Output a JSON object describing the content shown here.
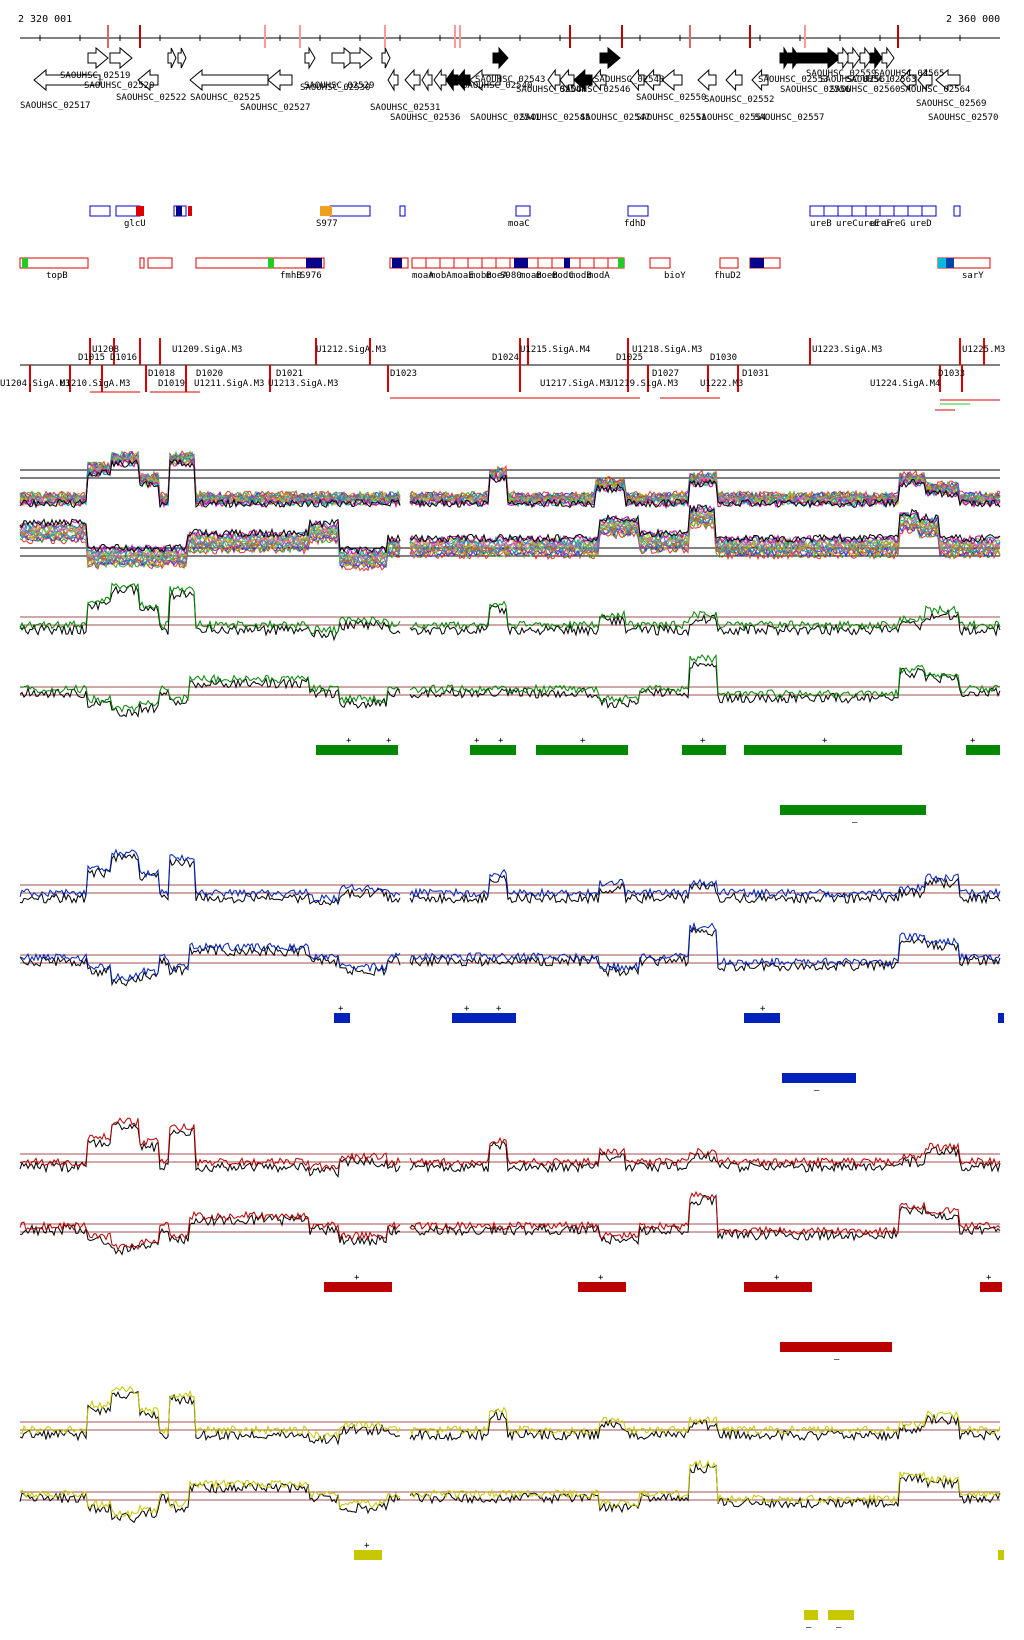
{
  "coordinates": {
    "start_label": "2 320 001",
    "end_label": "2 360 000"
  },
  "genes_top": [
    {
      "label": "SAOUHSC_02519"
    },
    {
      "label": "SAOUHSC_02520"
    },
    {
      "label": "SAOUHSC_02522"
    },
    {
      "label": "SAOUHSC_02525"
    },
    {
      "label": "SAOUHSC_02527"
    },
    {
      "label": "SAOUHSC_02529"
    },
    {
      "label": "SAOUHSC_02530"
    },
    {
      "label": "SAOUHSC_02531"
    },
    {
      "label": "SAOUHSC_02540"
    },
    {
      "label": "SAOUHSC_02543"
    },
    {
      "label": "SAOUHSC_02544"
    },
    {
      "label": "SAOUHSC_02546"
    },
    {
      "label": "SAOUHSC_02548"
    },
    {
      "label": "SAOUHSC_02550"
    },
    {
      "label": "SAOUHSC_02552"
    },
    {
      "label": "SAOUHSC_02553"
    },
    {
      "label": "SAOUHSC_02556"
    },
    {
      "label": "SAOUHSC_02559"
    },
    {
      "label": "SAOUHSC_02560"
    },
    {
      "label": "SAOUHSC_02561"
    },
    {
      "label": "SAOUHSC_02563"
    },
    {
      "label": "SAOUHSC_02564"
    },
    {
      "label": "SAOUHSC_02565"
    },
    {
      "label": "SAOUHSC_02569"
    }
  ],
  "genes_bottom": [
    {
      "label": "SAOUHSC_02517"
    },
    {
      "label": "SAOUHSC_02536"
    },
    {
      "label": "SAOUHSC_02541"
    },
    {
      "label": "SAOUHSC_02545"
    },
    {
      "label": "SAOUHSC_02547"
    },
    {
      "label": "SAOUHSC_02551"
    },
    {
      "label": "SAOUHSC_02554"
    },
    {
      "label": "SAOUHSC_02557"
    },
    {
      "label": "SAOUHSC_02570"
    }
  ],
  "features_plus": [
    "glcU",
    "S977",
    "moaC",
    "fdhD",
    "ureB",
    "ureC",
    "ureE",
    "ureF",
    "ureG",
    "ureD"
  ],
  "features_minus": [
    "topB",
    "fmhB",
    "S976",
    "moaA",
    "mobA",
    "moaE",
    "mobB",
    "moeA",
    "S980",
    "moaB",
    "moeB",
    "modC",
    "modB",
    "modA",
    "bioY",
    "fhuD2",
    "sarY"
  ],
  "tu_upper": [
    "U1208",
    "U1209.SigA.M3",
    "U1212.SigA.M3",
    "U1215.SigA.M4",
    "U1218.SigA.M3",
    "U1223.SigA.M3",
    "U1225.M3"
  ],
  "tu_upper_d": [
    "D1015",
    "D1016",
    "D1018",
    "D1019",
    "D1020",
    "D1021",
    "D1023",
    "D1024",
    "D1025",
    "D1027",
    "D1030",
    "D1031",
    "D1033"
  ],
  "tu_lower": [
    "U1204.SigA.M3",
    "U1210.SigA.M3",
    "U1211.SigA.M3",
    "U1213.SigA.M3",
    "U1217.SigA.M3",
    "U1219.SigA.M3",
    "U1222.M3",
    "U1224.SigA.M4"
  ],
  "strand_marks": {
    "plus": "+",
    "minus": "–"
  },
  "colors": {
    "green": "#008800",
    "blue": "#0022bb",
    "red": "#bb0000",
    "yellow": "#c8c800",
    "gene_outline": "#000000",
    "feature_plus": "#0000cc",
    "feature_minus": "#dd0000",
    "reference_line": "#a05050"
  }
}
